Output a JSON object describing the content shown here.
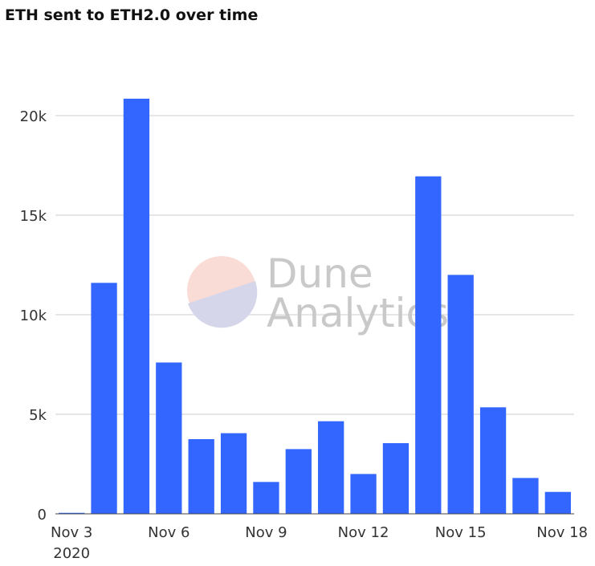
{
  "chart_data": {
    "type": "bar",
    "title": "ETH sent to ETH2.0 over time",
    "xlabel": "",
    "ylabel": "",
    "x": [
      "2020-11-03",
      "2020-11-04",
      "2020-11-05",
      "2020-11-06",
      "2020-11-07",
      "2020-11-08",
      "2020-11-09",
      "2020-11-10",
      "2020-11-11",
      "2020-11-12",
      "2020-11-13",
      "2020-11-14",
      "2020-11-15",
      "2020-11-16",
      "2020-11-17",
      "2020-11-18"
    ],
    "values": [
      50,
      11600,
      20850,
      7600,
      3750,
      4050,
      1600,
      3250,
      4650,
      2000,
      3550,
      16950,
      12000,
      5350,
      1800,
      1100
    ],
    "ylim": [
      0,
      22000
    ],
    "yticks": [
      0,
      5000,
      10000,
      15000,
      20000
    ],
    "ytick_labels": [
      "0",
      "5k",
      "10k",
      "15k",
      "20k"
    ],
    "xtick_labels": [
      "Nov 3",
      "Nov 6",
      "Nov 9",
      "Nov 12",
      "Nov 15",
      "Nov 18"
    ],
    "xtick_sub": "2020",
    "grid": true,
    "legend": "none",
    "bar_color": "#3366ff"
  },
  "watermark": {
    "line1": "Dune",
    "line2": "Analytics"
  }
}
